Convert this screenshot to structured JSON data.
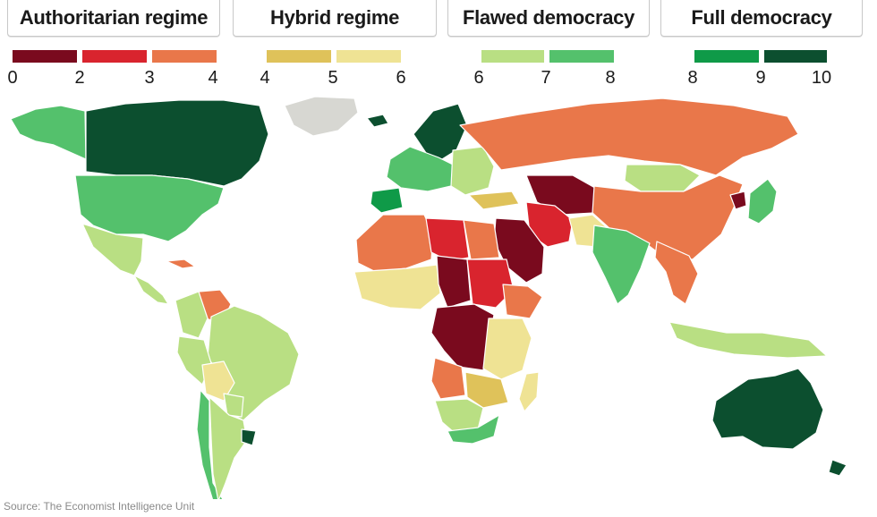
{
  "legend": {
    "groups": [
      {
        "title": "Authoritarian regime",
        "colors": [
          "#7a0a1e",
          "#d9242e",
          "#e9774a"
        ],
        "ticks": [
          "0",
          "2",
          "3",
          "4"
        ]
      },
      {
        "title": "Hybrid regime",
        "colors": [
          "#dfc25a",
          "#efe394"
        ],
        "ticks": [
          "4",
          "5",
          "6"
        ]
      },
      {
        "title": "Flawed democracy",
        "colors": [
          "#b9df83",
          "#54c16c"
        ],
        "ticks": [
          "6",
          "7",
          "8"
        ]
      },
      {
        "title": "Full democracy",
        "colors": [
          "#0f9a48",
          "#0c4f2f"
        ],
        "ticks": [
          "8",
          "9",
          "10"
        ]
      }
    ]
  },
  "map": {
    "no_data_color": "#d7d7d2",
    "border_color": "#ffffff",
    "regions": [
      {
        "name": "alaska",
        "color": "#54c16c"
      },
      {
        "name": "canada",
        "color": "#0c4f2f"
      },
      {
        "name": "usa",
        "color": "#54c16c"
      },
      {
        "name": "mexico",
        "color": "#b9df83"
      },
      {
        "name": "central-america",
        "color": "#b9df83"
      },
      {
        "name": "cuba",
        "color": "#e9774a"
      },
      {
        "name": "venezuela",
        "color": "#e9774a"
      },
      {
        "name": "colombia",
        "color": "#b9df83"
      },
      {
        "name": "brazil",
        "color": "#b9df83"
      },
      {
        "name": "peru",
        "color": "#b9df83"
      },
      {
        "name": "bolivia",
        "color": "#efe394"
      },
      {
        "name": "paraguay",
        "color": "#b9df83"
      },
      {
        "name": "chile",
        "color": "#54c16c"
      },
      {
        "name": "argentina",
        "color": "#b9df83"
      },
      {
        "name": "uruguay",
        "color": "#0c4f2f"
      },
      {
        "name": "greenland",
        "color": "#d7d7d2"
      },
      {
        "name": "iceland",
        "color": "#0c4f2f"
      },
      {
        "name": "scandinavia",
        "color": "#0c4f2f"
      },
      {
        "name": "western-europe",
        "color": "#54c16c"
      },
      {
        "name": "iberia",
        "color": "#0f9a48"
      },
      {
        "name": "eastern-europe",
        "color": "#b9df83"
      },
      {
        "name": "russia",
        "color": "#e9774a"
      },
      {
        "name": "north-africa-west",
        "color": "#e9774a"
      },
      {
        "name": "libya",
        "color": "#d9242e"
      },
      {
        "name": "egypt",
        "color": "#e9774a"
      },
      {
        "name": "west-africa",
        "color": "#efe394"
      },
      {
        "name": "chad",
        "color": "#7a0a1e"
      },
      {
        "name": "sudan",
        "color": "#d9242e"
      },
      {
        "name": "ethiopia",
        "color": "#e9774a"
      },
      {
        "name": "central-africa",
        "color": "#7a0a1e"
      },
      {
        "name": "east-africa",
        "color": "#efe394"
      },
      {
        "name": "angola",
        "color": "#e9774a"
      },
      {
        "name": "zambia",
        "color": "#dfc25a"
      },
      {
        "name": "namibia-botswana",
        "color": "#b9df83"
      },
      {
        "name": "south-africa",
        "color": "#54c16c"
      },
      {
        "name": "madagascar",
        "color": "#efe394"
      },
      {
        "name": "saudi-arabia",
        "color": "#7a0a1e"
      },
      {
        "name": "iran",
        "color": "#d9242e"
      },
      {
        "name": "central-asia",
        "color": "#7a0a1e"
      },
      {
        "name": "turkey",
        "color": "#dfc25a"
      },
      {
        "name": "pakistan",
        "color": "#efe394"
      },
      {
        "name": "india",
        "color": "#54c16c"
      },
      {
        "name": "china",
        "color": "#e9774a"
      },
      {
        "name": "mongolia",
        "color": "#b9df83"
      },
      {
        "name": "southeast-asia",
        "color": "#e9774a"
      },
      {
        "name": "north-korea",
        "color": "#7a0a1e"
      },
      {
        "name": "korea-japan",
        "color": "#54c16c"
      },
      {
        "name": "indonesia",
        "color": "#b9df83"
      },
      {
        "name": "australia",
        "color": "#0c4f2f"
      },
      {
        "name": "new-zealand",
        "color": "#0c4f2f"
      }
    ]
  },
  "source": "Source: The Economist Intelligence Unit"
}
